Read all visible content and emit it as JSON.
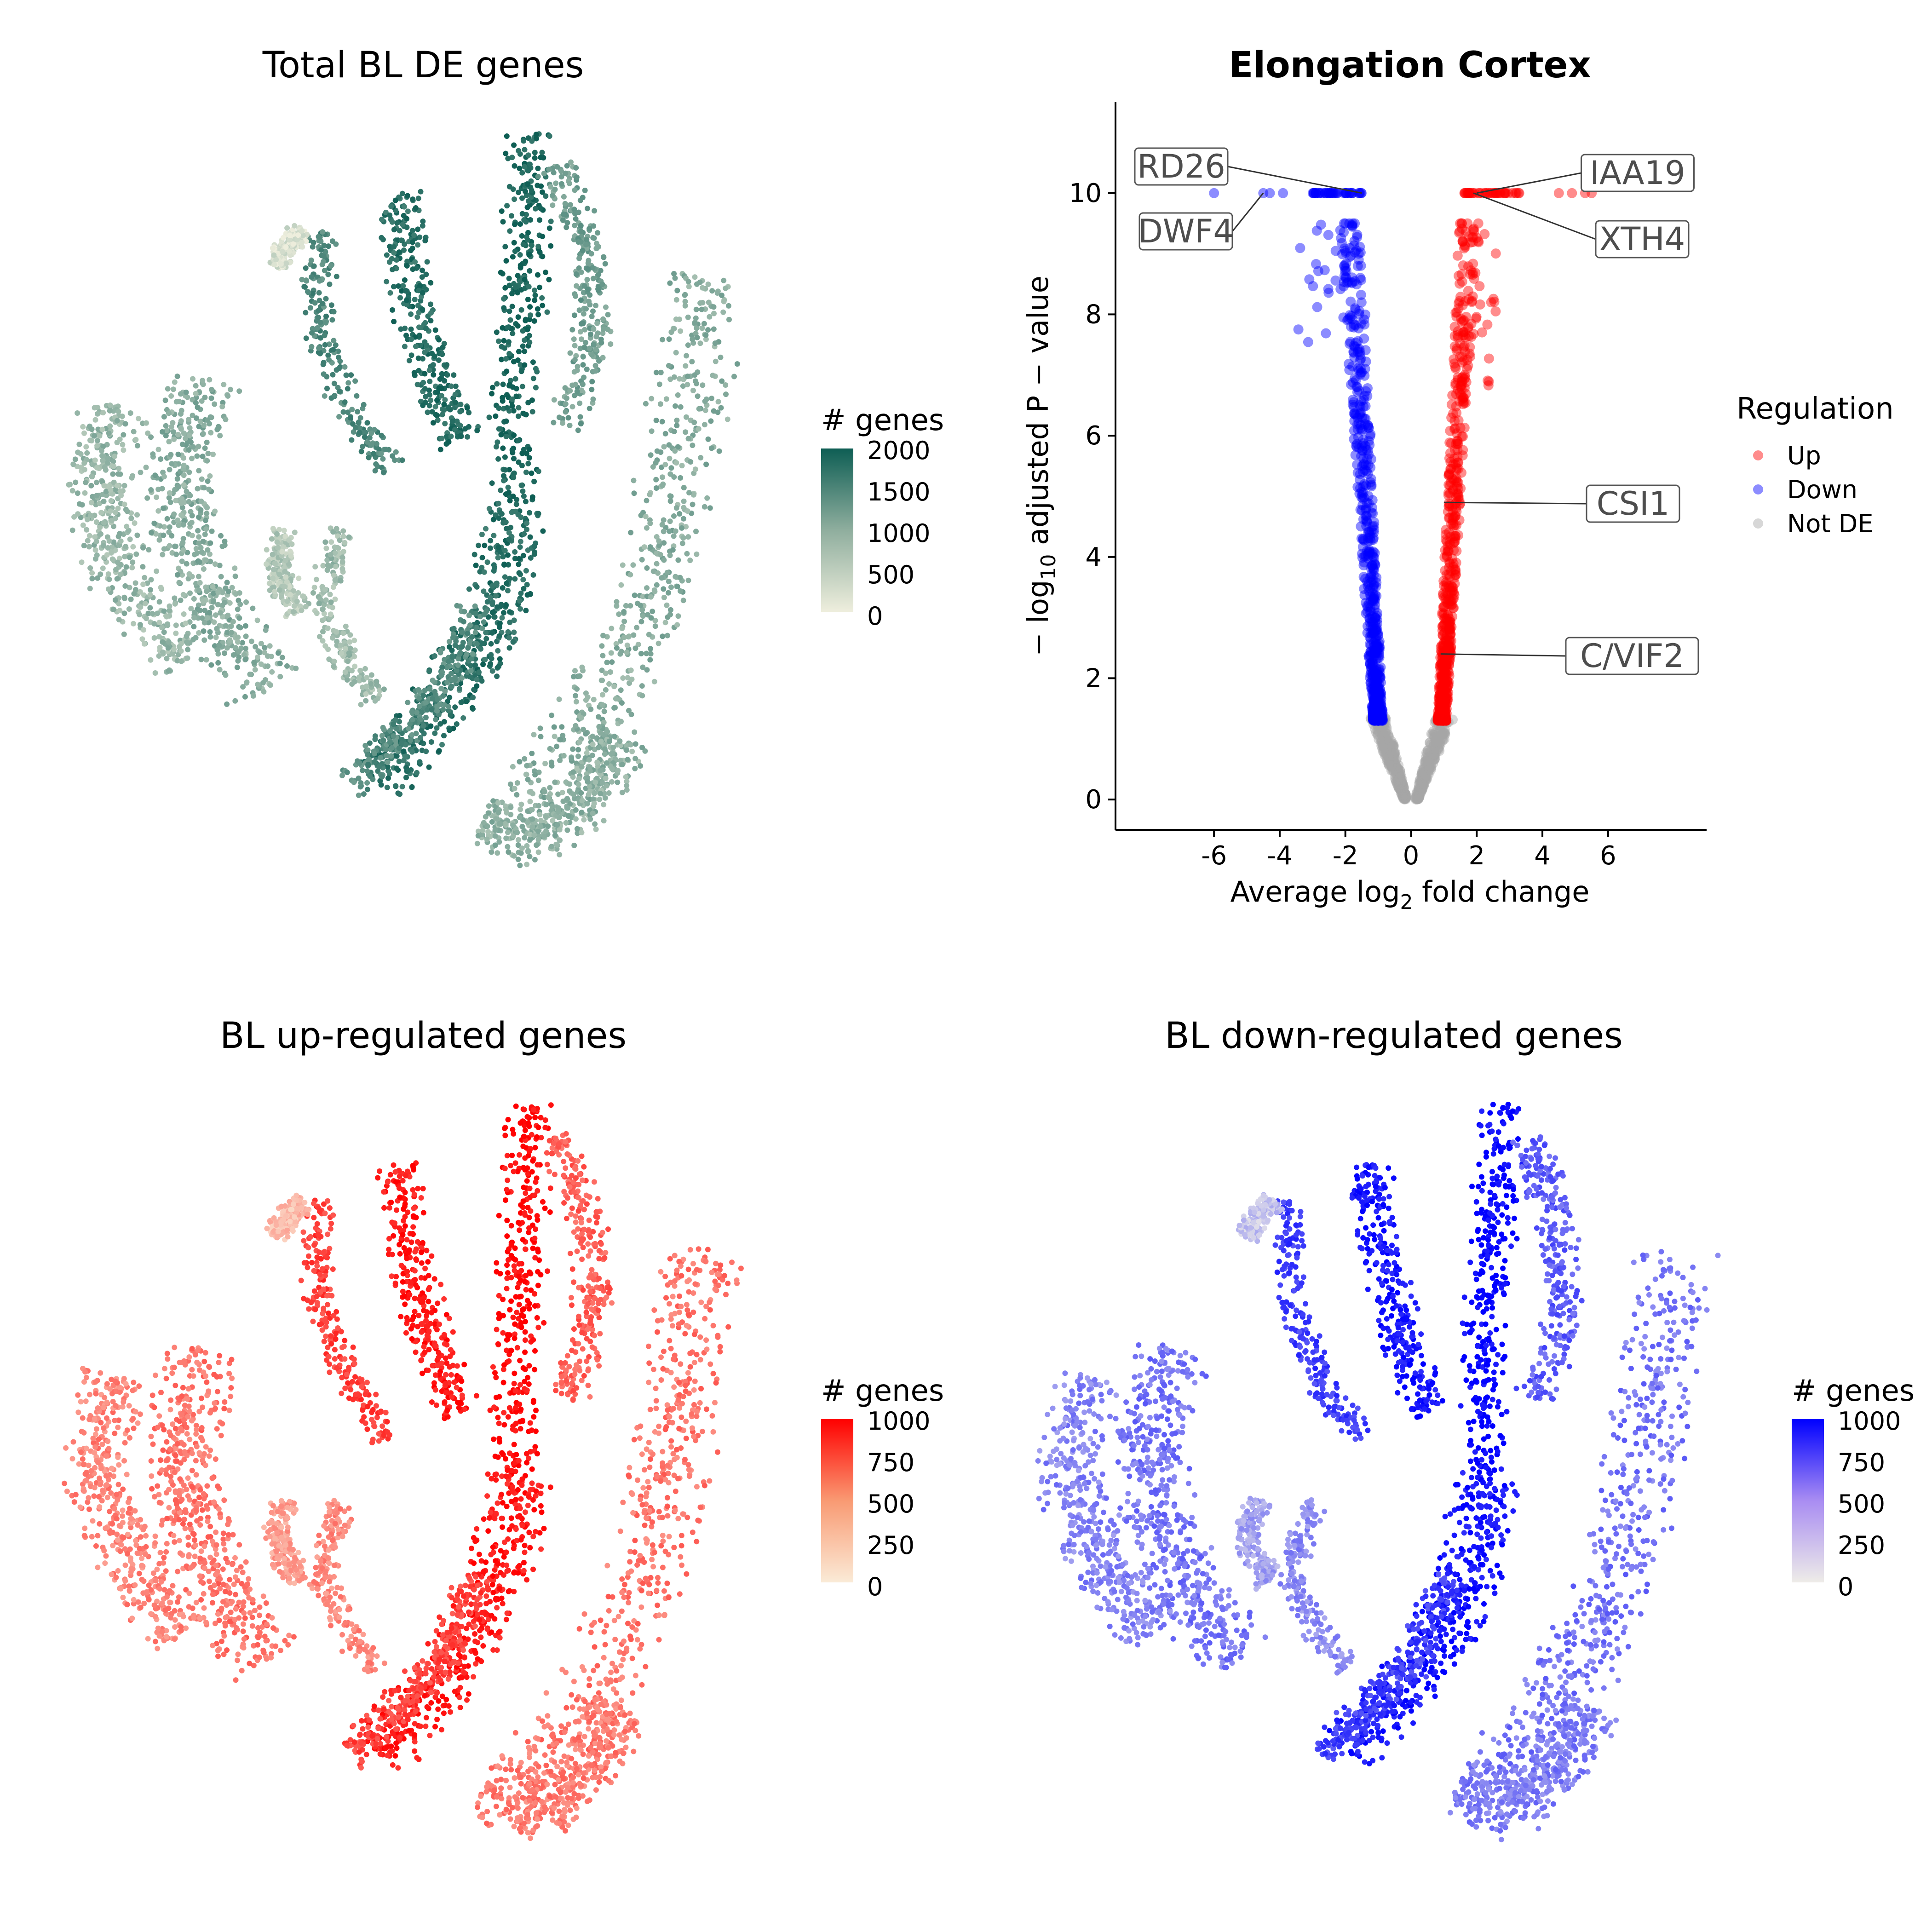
{
  "panels": {
    "total": {
      "title": "Total BL DE genes",
      "legend_title": "# genes",
      "legend_ticks": [
        "2000",
        "1500",
        "1000",
        "500",
        "0"
      ],
      "color_low": "#eeeedd",
      "color_high": "#0e5e54"
    },
    "up": {
      "title": "BL up-regulated genes",
      "legend_title": "# genes",
      "legend_ticks": [
        "1000",
        "750",
        "500",
        "250",
        "0"
      ],
      "color_low": "#faebd7",
      "color_high": "#ff0000"
    },
    "down": {
      "title": "BL down-regulated genes",
      "legend_title": "# genes",
      "legend_ticks": [
        "1000",
        "750",
        "500",
        "250",
        "0"
      ],
      "color_low": "#eeece8",
      "color_high": "#0000ff"
    }
  },
  "chart_data": [
    {
      "type": "scatter",
      "title": "Total BL DE genes",
      "legend_title": "# genes",
      "color_scale": {
        "min": 0,
        "max": 2000,
        "low": "#eeeedd",
        "high": "#0e5e54"
      }
    },
    {
      "type": "scatter",
      "title": "Elongation Cortex",
      "xlabel": "Average log2 fold change",
      "ylabel": "− log10 adjusted P − value",
      "xlim": [
        -9,
        9
      ],
      "ylim": [
        -0.5,
        11.5
      ],
      "xticks": [
        "-6",
        "-4",
        "-2",
        "0",
        "2",
        "4",
        "6"
      ],
      "yticks": [
        "0",
        "2",
        "4",
        "6",
        "8",
        "10"
      ],
      "legend_title": "Regulation",
      "legend_position": "right",
      "series": [
        {
          "name": "Up",
          "color": "#ff0000"
        },
        {
          "name": "Down",
          "color": "#0000ff"
        },
        {
          "name": "Not DE",
          "color": "#a6a6a6"
        }
      ],
      "labeled_genes": [
        {
          "label": "RD26",
          "x": -1.5,
          "y": 10
        },
        {
          "label": "DWF4",
          "x": -4.5,
          "y": 10
        },
        {
          "label": "IAA19",
          "x": 2.0,
          "y": 10
        },
        {
          "label": "XTH4",
          "x": 1.9,
          "y": 10
        },
        {
          "label": "CSI1",
          "x": 1.0,
          "y": 4.9
        },
        {
          "label": "C/VIF2",
          "x": 0.9,
          "y": 2.4
        }
      ]
    },
    {
      "type": "scatter",
      "title": "BL up-regulated genes",
      "legend_title": "# genes",
      "color_scale": {
        "min": 0,
        "max": 1000,
        "low": "#faebd7",
        "high": "#ff0000"
      }
    },
    {
      "type": "scatter",
      "title": "BL down-regulated genes",
      "legend_title": "# genes",
      "color_scale": {
        "min": 0,
        "max": 1000,
        "low": "#eeece8",
        "high": "#0000ff"
      }
    }
  ],
  "volcano_text": {
    "title": "Elongation Cortex",
    "xlabel_prefix": "Average log",
    "xlabel_sub": "2",
    "xlabel_suffix": " fold change",
    "ylabel_prefix": "− log",
    "ylabel_sub": "10",
    "ylabel_suffix": " adjusted P − value",
    "legend_title": "Regulation",
    "legend_up": "Up",
    "legend_down": "Down",
    "legend_notde": "Not DE"
  }
}
